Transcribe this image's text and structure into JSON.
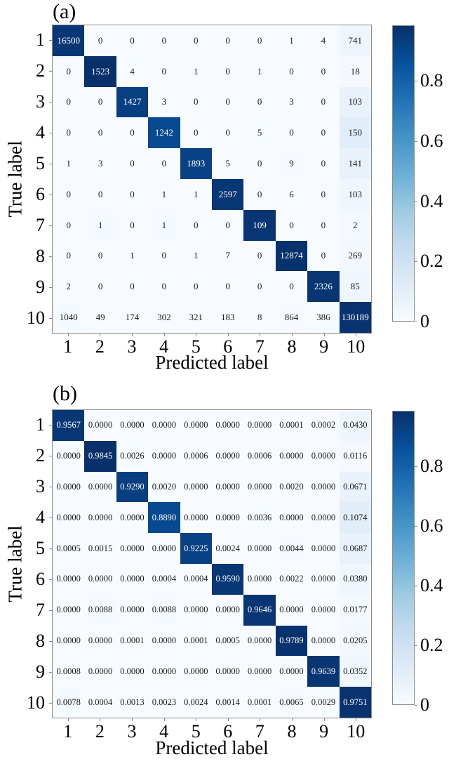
{
  "chart_data": [
    {
      "type": "heatmap",
      "panel_label": "(a)",
      "title": "",
      "xlabel": "Predicted label",
      "ylabel": "True label",
      "x_tick_labels": [
        "1",
        "2",
        "3",
        "4",
        "5",
        "6",
        "7",
        "8",
        "9",
        "10"
      ],
      "y_tick_labels": [
        "1",
        "2",
        "3",
        "4",
        "5",
        "6",
        "7",
        "8",
        "9",
        "10"
      ],
      "value_format": "int",
      "values": [
        [
          16500,
          0,
          0,
          0,
          0,
          0,
          0,
          1,
          4,
          741
        ],
        [
          0,
          1523,
          4,
          0,
          1,
          0,
          1,
          0,
          0,
          18
        ],
        [
          0,
          0,
          1427,
          3,
          0,
          0,
          0,
          3,
          0,
          103
        ],
        [
          0,
          0,
          0,
          1242,
          0,
          0,
          5,
          0,
          0,
          150
        ],
        [
          1,
          3,
          0,
          0,
          1893,
          5,
          0,
          9,
          0,
          141
        ],
        [
          0,
          0,
          0,
          1,
          1,
          2597,
          0,
          6,
          0,
          103
        ],
        [
          0,
          1,
          0,
          1,
          0,
          0,
          109,
          0,
          0,
          2
        ],
        [
          0,
          0,
          1,
          0,
          1,
          7,
          0,
          12874,
          0,
          269
        ],
        [
          2,
          0,
          0,
          0,
          0,
          0,
          0,
          0,
          2326,
          85
        ],
        [
          1040,
          49,
          174,
          302,
          321,
          183,
          8,
          864,
          386,
          130189
        ]
      ],
      "shading_values": [
        [
          0.9567,
          0.0,
          0.0,
          0.0,
          0.0,
          0.0,
          0.0,
          0.0001,
          0.0002,
          0.043
        ],
        [
          0.0,
          0.9845,
          0.0026,
          0.0,
          0.0006,
          0.0,
          0.0006,
          0.0,
          0.0,
          0.0116
        ],
        [
          0.0,
          0.0,
          0.929,
          0.002,
          0.0,
          0.0,
          0.0,
          0.002,
          0.0,
          0.0671
        ],
        [
          0.0,
          0.0,
          0.0,
          0.889,
          0.0,
          0.0,
          0.0036,
          0.0,
          0.0,
          0.1074
        ],
        [
          0.0005,
          0.0015,
          0.0,
          0.0,
          0.9225,
          0.0024,
          0.0,
          0.0044,
          0.0,
          0.0687
        ],
        [
          0.0,
          0.0,
          0.0,
          0.0004,
          0.0004,
          0.959,
          0.0,
          0.0022,
          0.0,
          0.038
        ],
        [
          0.0,
          0.0088,
          0.0,
          0.0088,
          0.0,
          0.0,
          0.9646,
          0.0,
          0.0,
          0.0177
        ],
        [
          0.0,
          0.0,
          0.0001,
          0.0,
          0.0001,
          0.0005,
          0.0,
          0.9789,
          0.0,
          0.0205
        ],
        [
          0.0008,
          0.0,
          0.0,
          0.0,
          0.0,
          0.0,
          0.0,
          0.0,
          0.9639,
          0.0352
        ],
        [
          0.0078,
          0.0004,
          0.0013,
          0.0023,
          0.0024,
          0.0014,
          0.0001,
          0.0065,
          0.0029,
          0.9751
        ]
      ],
      "colorbar": {
        "vmin": 0,
        "vmax": 0.9845,
        "tick_values": [
          0,
          0.2,
          0.4,
          0.6,
          0.8
        ],
        "tick_labels": [
          "0",
          "0.2",
          "0.4",
          "0.6",
          "0.8"
        ]
      }
    },
    {
      "type": "heatmap",
      "panel_label": "(b)",
      "title": "",
      "xlabel": "Predicted label",
      "ylabel": "True label",
      "x_tick_labels": [
        "1",
        "2",
        "3",
        "4",
        "5",
        "6",
        "7",
        "8",
        "9",
        "10"
      ],
      "y_tick_labels": [
        "1",
        "2",
        "3",
        "4",
        "5",
        "6",
        "7",
        "8",
        "9",
        "10"
      ],
      "value_format": "4dp",
      "values": [
        [
          0.9567,
          0.0,
          0.0,
          0.0,
          0.0,
          0.0,
          0.0,
          0.0001,
          0.0002,
          0.043
        ],
        [
          0.0,
          0.9845,
          0.0026,
          0.0,
          0.0006,
          0.0,
          0.0006,
          0.0,
          0.0,
          0.0116
        ],
        [
          0.0,
          0.0,
          0.929,
          0.002,
          0.0,
          0.0,
          0.0,
          0.002,
          0.0,
          0.0671
        ],
        [
          0.0,
          0.0,
          0.0,
          0.889,
          0.0,
          0.0,
          0.0036,
          0.0,
          0.0,
          0.1074
        ],
        [
          0.0005,
          0.0015,
          0.0,
          0.0,
          0.9225,
          0.0024,
          0.0,
          0.0044,
          0.0,
          0.0687
        ],
        [
          0.0,
          0.0,
          0.0,
          0.0004,
          0.0004,
          0.959,
          0.0,
          0.0022,
          0.0,
          0.038
        ],
        [
          0.0,
          0.0088,
          0.0,
          0.0088,
          0.0,
          0.0,
          0.9646,
          0.0,
          0.0,
          0.0177
        ],
        [
          0.0,
          0.0,
          0.0001,
          0.0,
          0.0001,
          0.0005,
          0.0,
          0.9789,
          0.0,
          0.0205
        ],
        [
          0.0008,
          0.0,
          0.0,
          0.0,
          0.0,
          0.0,
          0.0,
          0.0,
          0.9639,
          0.0352
        ],
        [
          0.0078,
          0.0004,
          0.0013,
          0.0023,
          0.0024,
          0.0014,
          0.0001,
          0.0065,
          0.0029,
          0.9751
        ]
      ],
      "colorbar": {
        "vmin": 0,
        "vmax": 0.9845,
        "tick_values": [
          0,
          0.2,
          0.4,
          0.6,
          0.8
        ],
        "tick_labels": [
          "0",
          "0.2",
          "0.4",
          "0.6",
          "0.8"
        ]
      }
    }
  ],
  "style": {
    "colormap": "Blues",
    "colormap_stops": [
      "#f7fbff",
      "#deebf7",
      "#c6dbef",
      "#9ecae1",
      "#6baed6",
      "#4292c6",
      "#2171b5",
      "#08519c",
      "#08306b"
    ],
    "cell_text_dark": "#1a1a1a",
    "cell_text_light": "#ffffff",
    "axis_color": "#8a8a8a",
    "background": "#ffffff"
  }
}
